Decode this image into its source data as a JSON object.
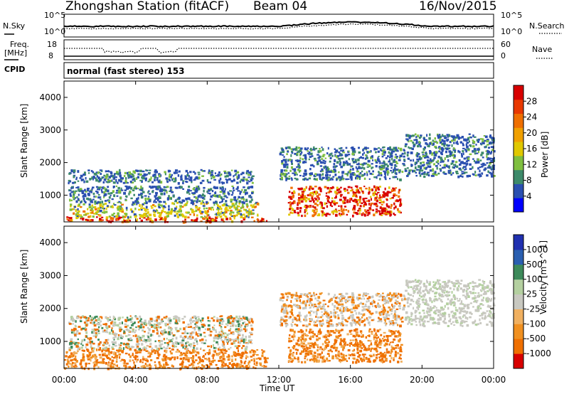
{
  "header": {
    "station": "Zhongshan Station (fitACF)",
    "beam": "Beam 04",
    "date": "16/Nov/2015"
  },
  "top_panel": {
    "left_label": "N.Sky",
    "right_label": "N.Search",
    "left_ticks": [
      "10^5",
      "10^0"
    ],
    "right_ticks": [
      "10^5",
      "10^0"
    ]
  },
  "freq_panel": {
    "left_label_1": "Freq.",
    "left_label_2": "[MHz]",
    "right_label": "Nave",
    "left_ticks": [
      "18",
      "8"
    ],
    "right_ticks": [
      "60",
      "0"
    ]
  },
  "cpid_panel": {
    "label": "CPID",
    "text": "normal (fast stereo) 153"
  },
  "x_ticks": [
    "00:00",
    "04:00",
    "08:00",
    "12:00",
    "16:00",
    "20:00",
    "00:00"
  ],
  "x_label": "Time UT",
  "colors": {
    "power_scale": [
      "#0000ff",
      "#2a4fb0",
      "#3d8a6a",
      "#7fbf3f",
      "#e0c800",
      "#f0a000",
      "#ef6f00",
      "#e83800",
      "#d80000"
    ],
    "velocity_scale": [
      "#d80000",
      "#ef6f00",
      "#f09020",
      "#f0b060",
      "#c8c8c0",
      "#b4d0a0",
      "#3d8a5a",
      "#2a5fb0",
      "#2030b0"
    ]
  },
  "chart_data": [
    {
      "type": "heatmap",
      "title": "",
      "xlabel": "Time UT",
      "ylabel": "Slant Range [km]",
      "xlim": [
        0,
        24
      ],
      "ylim": [
        180,
        4500
      ],
      "yticks": [
        "1000",
        "2000",
        "3000",
        "4000"
      ],
      "colorbar": {
        "label": "Power [dB]",
        "ticks": [
          "4",
          "8",
          "12",
          "16",
          "20",
          "24",
          "28"
        ],
        "range": [
          0,
          30
        ]
      },
      "regions": [
        {
          "t0": 0.0,
          "t1": 11.3,
          "r0": 200,
          "r1": 350,
          "level": "high"
        },
        {
          "t0": 0.3,
          "t1": 10.8,
          "r0": 350,
          "r1": 800,
          "level": "medium"
        },
        {
          "t0": 0.2,
          "t1": 10.5,
          "r0": 800,
          "r1": 1300,
          "level": "low"
        },
        {
          "t0": 0.2,
          "t1": 10.5,
          "r0": 1400,
          "r1": 1800,
          "level": "low"
        },
        {
          "t0": 12.5,
          "t1": 18.8,
          "r0": 400,
          "r1": 1300,
          "level": "high"
        },
        {
          "t0": 12.0,
          "t1": 19.0,
          "r0": 1500,
          "r1": 2500,
          "level": "low"
        },
        {
          "t0": 19.0,
          "t1": 24.0,
          "r0": 1600,
          "r1": 2900,
          "level": "low"
        }
      ]
    },
    {
      "type": "heatmap",
      "title": "",
      "xlabel": "Time UT",
      "ylabel": "Slant Range [km]",
      "xlim": [
        0,
        24
      ],
      "ylim": [
        180,
        4500
      ],
      "yticks": [
        "1000",
        "2000",
        "3000",
        "4000"
      ],
      "colorbar": {
        "label": "Velocity [m s^-1]",
        "ticks": [
          "-1000",
          "-500",
          "-100",
          "-25",
          "25",
          "100",
          "500",
          "1000"
        ],
        "range": [
          -1200,
          1200
        ]
      },
      "regions": [
        {
          "t0": 0.0,
          "t1": 11.3,
          "r0": 200,
          "r1": 800,
          "level": "neg-med"
        },
        {
          "t0": 0.2,
          "t1": 10.5,
          "r0": 800,
          "r1": 1800,
          "level": "mixed"
        },
        {
          "t0": 12.5,
          "t1": 18.8,
          "r0": 400,
          "r1": 1400,
          "level": "neg-med"
        },
        {
          "t0": 12.0,
          "t1": 19.0,
          "r0": 1500,
          "r1": 2500,
          "level": "neg-low"
        },
        {
          "t0": 19.0,
          "t1": 24.0,
          "r0": 1500,
          "r1": 2900,
          "level": "near-zero"
        }
      ]
    }
  ]
}
